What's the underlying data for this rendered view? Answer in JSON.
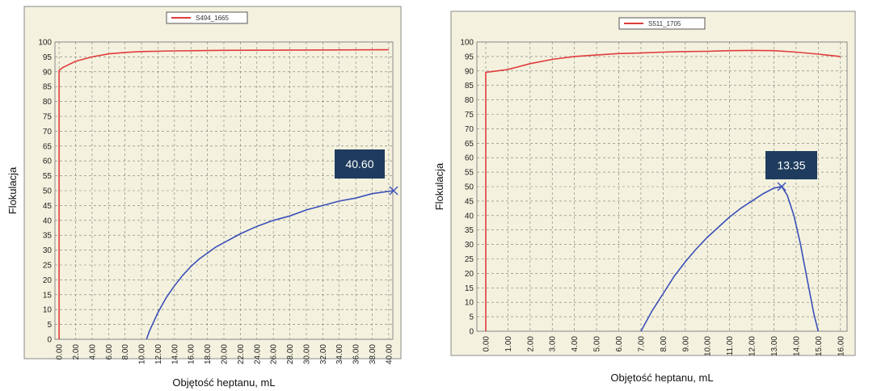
{
  "chart_data": [
    {
      "type": "line",
      "legend": [
        "S494_1665"
      ],
      "xlabel": "Objętość heptanu, mL",
      "ylabel": "Flokulacja",
      "xlim": [
        -0.5,
        40.5
      ],
      "ylim": [
        0,
        100
      ],
      "x_ticks": [
        "0.00",
        "2.00",
        "4.00",
        "6.00",
        "8.00",
        "10.00",
        "12.00",
        "14.00",
        "16.00",
        "18.00",
        "20.00",
        "22.00",
        "24.00",
        "26.00",
        "28.00",
        "30.00",
        "32.00",
        "34.00",
        "36.00",
        "38.00",
        "40.00"
      ],
      "y_ticks": [
        0,
        5,
        10,
        15,
        20,
        25,
        30,
        35,
        40,
        45,
        50,
        55,
        60,
        65,
        70,
        75,
        80,
        85,
        90,
        95,
        100
      ],
      "grid": true,
      "legend_position": "top-center",
      "series": [
        {
          "color": "#e03c3c",
          "x": [
            0,
            0,
            0.5,
            2,
            4,
            6,
            8,
            10,
            14,
            20,
            30,
            40
          ],
          "y": [
            0,
            90.5,
            91.5,
            93.5,
            95,
            96,
            96.5,
            96.8,
            97.0,
            97.2,
            97.3,
            97.4
          ]
        },
        {
          "color": "#3b4fb8",
          "x": [
            10.6,
            11,
            12,
            13,
            14,
            15,
            16,
            17,
            18,
            19,
            20,
            22,
            24,
            26,
            28,
            30,
            32,
            34,
            36,
            38,
            40.6
          ],
          "y": [
            0,
            3,
            9,
            14,
            18,
            21.5,
            24.5,
            27,
            29,
            31,
            32.5,
            35.5,
            38,
            40,
            41.5,
            43.5,
            45,
            46.5,
            47.5,
            49,
            50
          ]
        }
      ],
      "annotation": {
        "label": "40.60",
        "x": 40.6,
        "y": 50
      }
    },
    {
      "type": "line",
      "legend": [
        "S511_1705"
      ],
      "xlabel": "Objętość heptanu, mL",
      "ylabel": "Flokulacja",
      "xlim": [
        -0.4,
        16.3
      ],
      "ylim": [
        0,
        100
      ],
      "x_ticks": [
        "0.00",
        "1.00",
        "2.00",
        "3.00",
        "4.00",
        "5.00",
        "6.00",
        "7.00",
        "8.00",
        "9.00",
        "10.00",
        "11.00",
        "12.00",
        "13.00",
        "14.00",
        "15.00",
        "16.00"
      ],
      "y_ticks": [
        0,
        5,
        10,
        15,
        20,
        25,
        30,
        35,
        40,
        45,
        50,
        55,
        60,
        65,
        70,
        75,
        80,
        85,
        90,
        95,
        100
      ],
      "grid": true,
      "legend_position": "top-center",
      "series": [
        {
          "color": "#e03c3c",
          "x": [
            0,
            0,
            0.5,
            1,
            2,
            3,
            4,
            5,
            6,
            7,
            8,
            9,
            10,
            11,
            12,
            13,
            14,
            15,
            16
          ],
          "y": [
            0,
            89.5,
            90,
            90.5,
            92.5,
            94,
            95,
            95.5,
            96,
            96.2,
            96.5,
            96.7,
            96.8,
            97,
            97.1,
            97,
            96.5,
            95.8,
            95
          ]
        },
        {
          "color": "#3b4fb8",
          "x": [
            7.0,
            7.5,
            8,
            8.5,
            9,
            9.5,
            10,
            10.5,
            11,
            11.5,
            12,
            12.5,
            13,
            13.35,
            13.6,
            13.9,
            14.2,
            14.5,
            14.8,
            15.0
          ],
          "y": [
            0,
            7,
            13,
            19,
            24,
            28.5,
            32.5,
            36,
            39.5,
            42.5,
            45,
            47.5,
            49.5,
            50,
            47,
            40,
            30,
            18,
            6,
            0
          ]
        }
      ],
      "annotation": {
        "label": "13.35",
        "x": 13.35,
        "y": 50
      }
    }
  ]
}
